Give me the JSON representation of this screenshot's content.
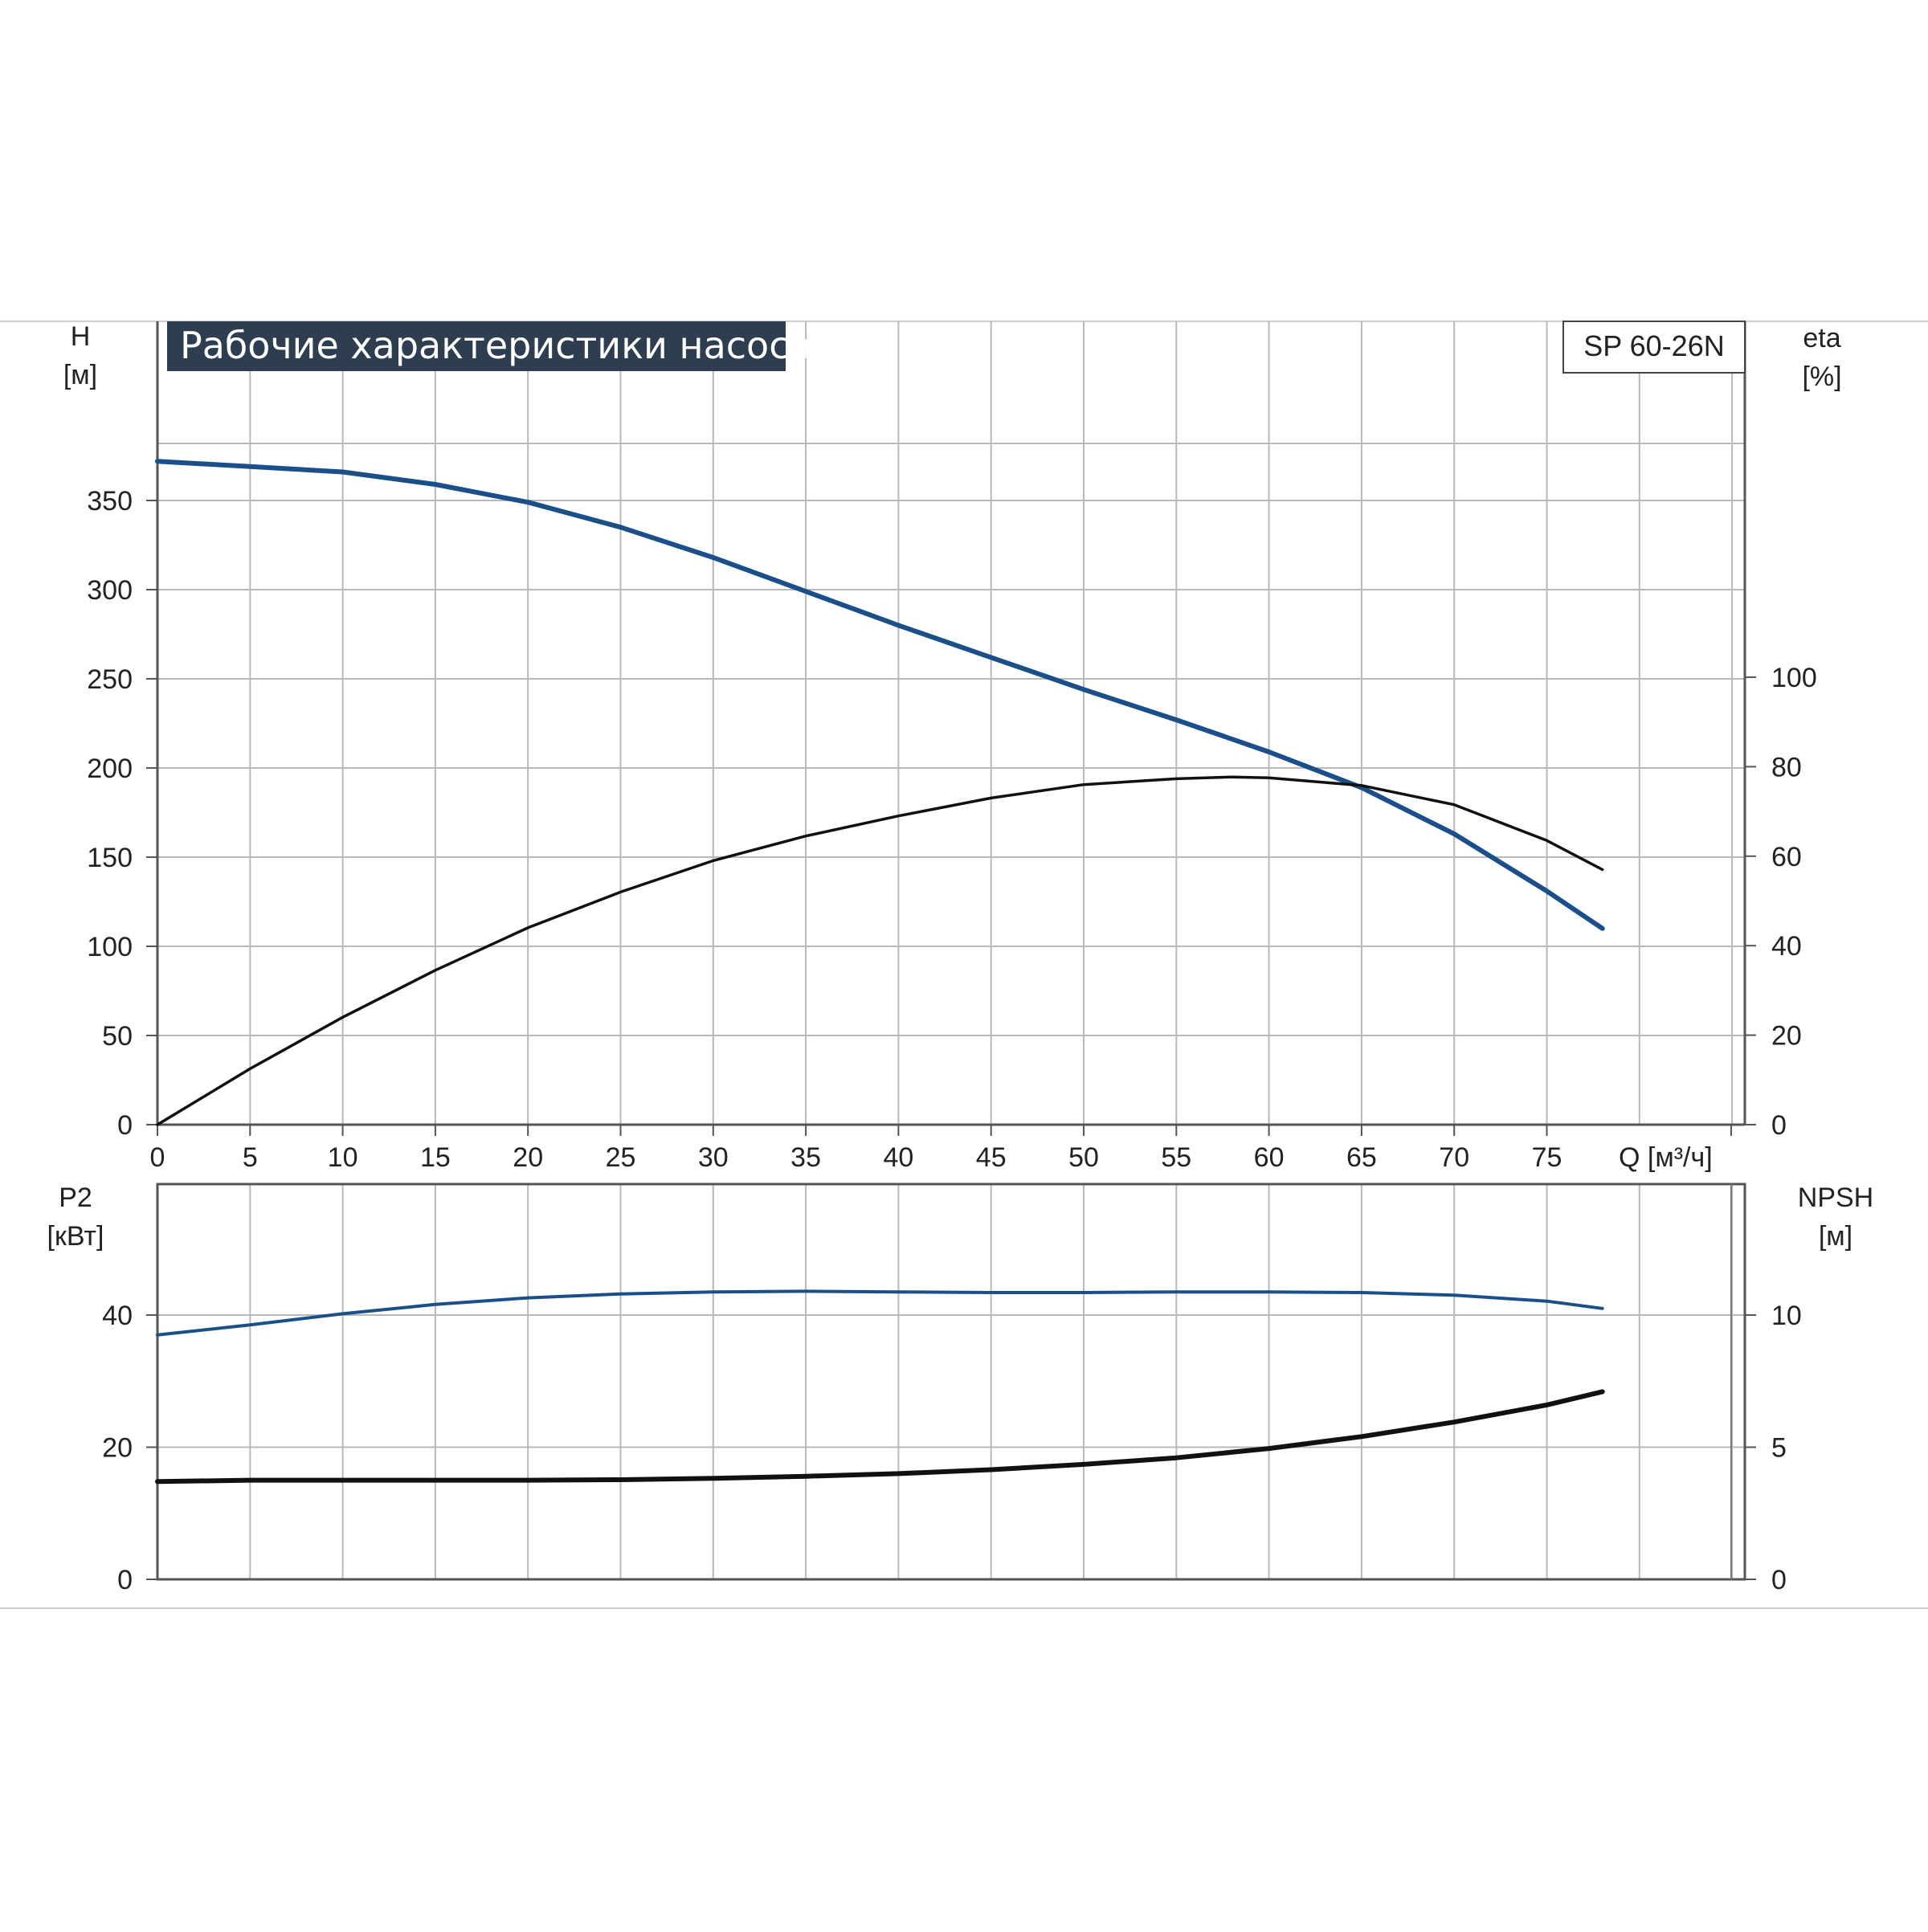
{
  "title": "Рабочие характеристики насоса",
  "model": "SP 60-26N",
  "colors": {
    "blue": "#1b4f8a",
    "black": "#111111",
    "grid": "#b8b8b8",
    "title_bg": "#2e3d4f",
    "frame": "#cfcfcf"
  },
  "chart_data": [
    {
      "type": "line",
      "title": "Рабочие характеристики насоса",
      "xlabel": "Q [м³/ч]",
      "x_ticks": [
        "0",
        "5",
        "10",
        "15",
        "20",
        "25",
        "30",
        "35",
        "40",
        "45",
        "50",
        "55",
        "60",
        "65",
        "70",
        "75"
      ],
      "xlim": [
        0,
        85
      ],
      "y_left": {
        "label_line1": "H",
        "label_line2": "[м]",
        "ylim": [
          0,
          400
        ],
        "ticks": [
          "0",
          "50",
          "100",
          "150",
          "200",
          "250",
          "300",
          "350"
        ]
      },
      "y_right": {
        "label_line1": "eta",
        "label_line2": "[%]",
        "ylim": [
          0,
          100
        ],
        "ticks": [
          "0",
          "20",
          "40",
          "60",
          "80",
          "100"
        ]
      },
      "grid": true,
      "series": [
        {
          "name": "H",
          "axis": "left",
          "color": "blue",
          "x": [
            0,
            5,
            10,
            15,
            20,
            25,
            30,
            35,
            40,
            45,
            50,
            55,
            60,
            65,
            70,
            75,
            78
          ],
          "y": [
            372,
            369,
            366,
            359,
            349,
            335,
            318,
            299,
            280,
            262,
            244,
            227,
            209,
            189,
            163,
            131,
            110
          ]
        },
        {
          "name": "eta",
          "axis": "right",
          "color": "black",
          "x": [
            0,
            5,
            10,
            15,
            20,
            25,
            30,
            35,
            40,
            45,
            50,
            55,
            58,
            60,
            65,
            70,
            75,
            78
          ],
          "y": [
            0,
            12.5,
            24,
            34.5,
            44,
            52,
            59,
            64.5,
            69,
            73,
            76,
            77.3,
            77.7,
            77.5,
            75.8,
            71.5,
            63.5,
            57
          ]
        }
      ]
    },
    {
      "type": "line",
      "xlabel": "",
      "xlim": [
        0,
        85
      ],
      "y_left": {
        "label_line1": "P2",
        "label_line2": "[кВт]",
        "ylim": [
          0,
          60
        ],
        "ticks": [
          "0",
          "20",
          "40"
        ]
      },
      "y_right": {
        "label_line1": "NPSH",
        "label_line2": "[м]",
        "ylim": [
          0,
          15
        ],
        "ticks": [
          "0",
          "5",
          "10"
        ]
      },
      "grid": true,
      "series": [
        {
          "name": "P2",
          "axis": "left",
          "color": "blue",
          "x": [
            0,
            5,
            10,
            15,
            20,
            25,
            30,
            35,
            40,
            45,
            50,
            55,
            60,
            65,
            70,
            75,
            78
          ],
          "y": [
            37,
            38.5,
            40.2,
            41.6,
            42.6,
            43.2,
            43.5,
            43.6,
            43.5,
            43.4,
            43.4,
            43.5,
            43.5,
            43.4,
            43.0,
            42.1,
            41.0
          ]
        },
        {
          "name": "NPSH",
          "axis": "right",
          "color": "black",
          "x": [
            0,
            5,
            10,
            15,
            20,
            25,
            30,
            35,
            40,
            45,
            50,
            55,
            60,
            65,
            70,
            75,
            78
          ],
          "y": [
            3.7,
            3.75,
            3.75,
            3.75,
            3.75,
            3.77,
            3.82,
            3.9,
            4.0,
            4.15,
            4.35,
            4.6,
            4.95,
            5.4,
            5.95,
            6.6,
            7.1
          ]
        }
      ]
    }
  ]
}
